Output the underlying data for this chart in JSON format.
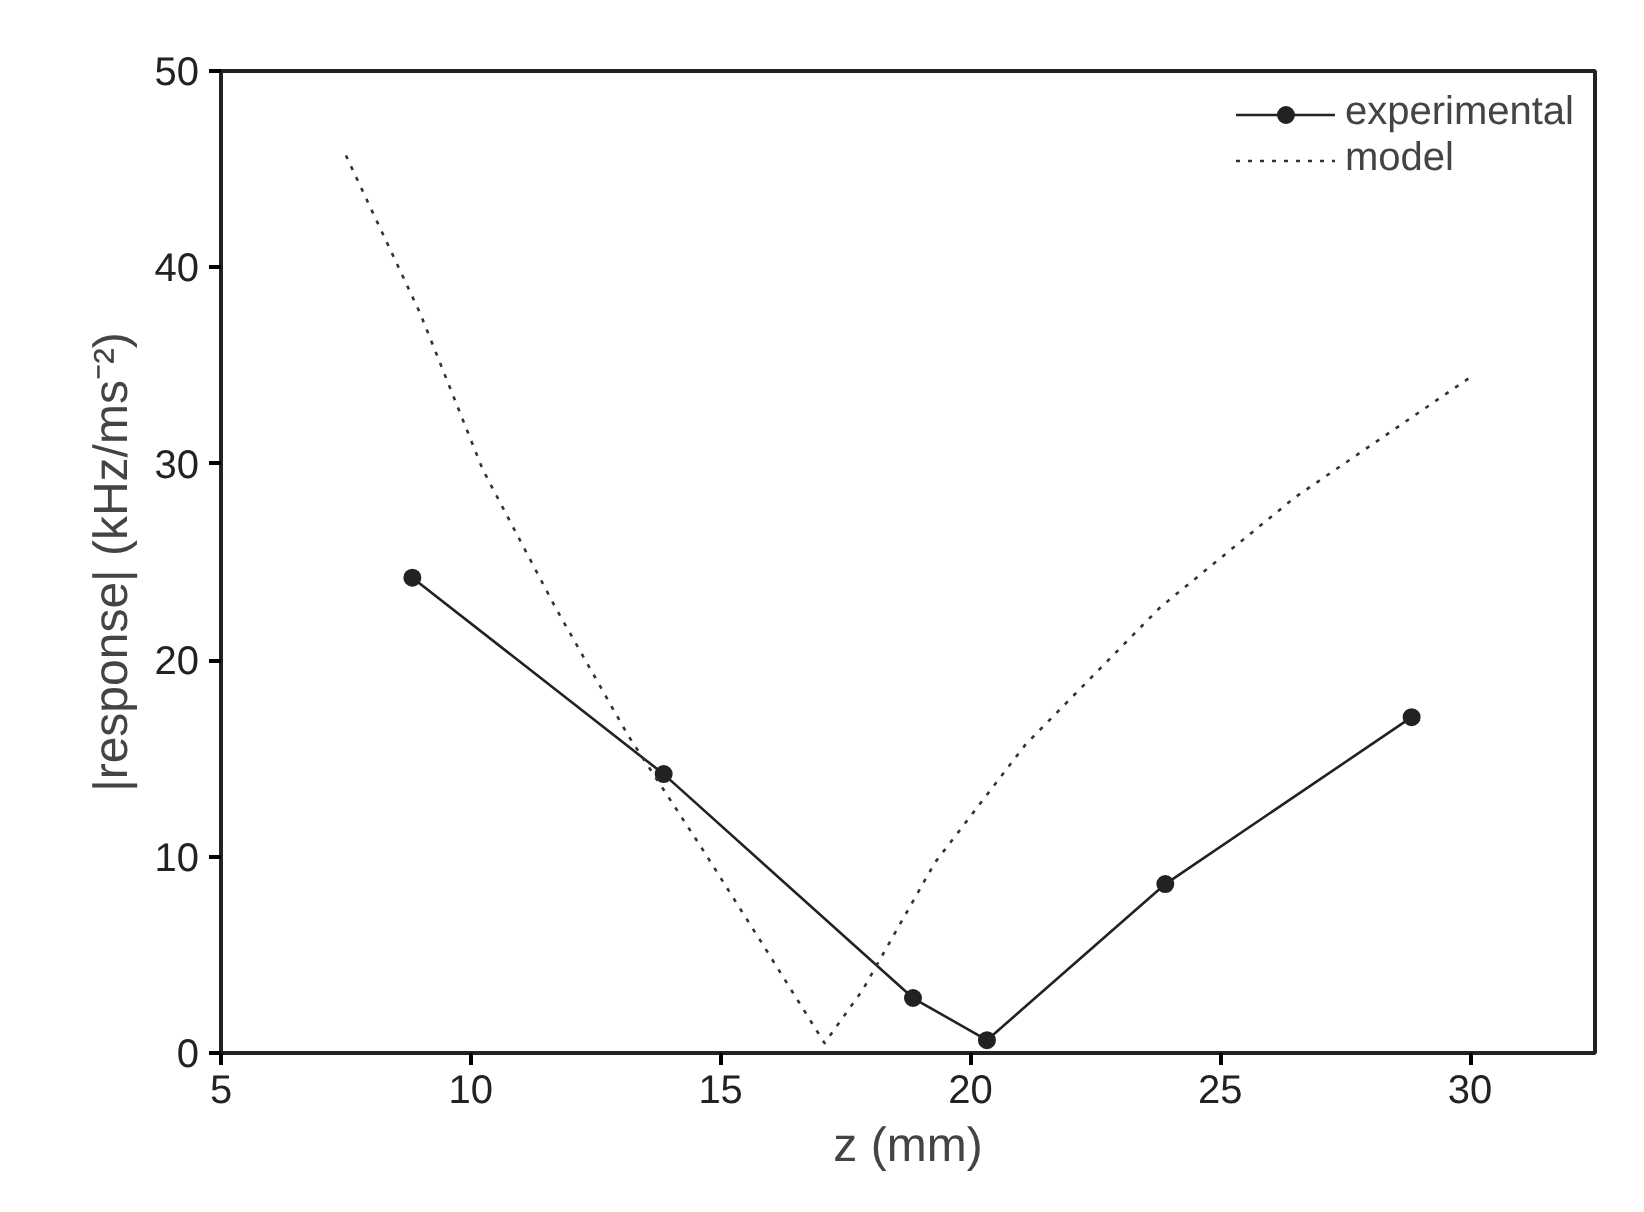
{
  "chart_data": {
    "type": "line",
    "xlabel": "z (mm)",
    "ylabel": "|response| (kHz/ms⁻²)",
    "xlim": [
      5,
      32.5
    ],
    "xticks": [
      5,
      10,
      15,
      20,
      25,
      30
    ],
    "ylim": [
      0,
      50
    ],
    "yticks": [
      0,
      10,
      20,
      30,
      40,
      50
    ],
    "grid": false,
    "legend": "top right",
    "series": [
      {
        "name": "experimental",
        "color": "#222222",
        "marker": "circle",
        "line_style": "solid",
        "x": [
          8.83,
          13.86,
          18.85,
          20.33,
          23.9,
          28.83
        ],
        "values": [
          24.2,
          14.2,
          2.8,
          0.65,
          8.6,
          17.1
        ]
      },
      {
        "name": "model",
        "color": "#333333",
        "marker": "none",
        "line_style": "dotted",
        "x": [
          7.5,
          8.98,
          10.24,
          11.69,
          13.14,
          14.58,
          15.85,
          17.08,
          17.84,
          19.29,
          21.1,
          23.8,
          26.5,
          30.0
        ],
        "values": [
          45.7,
          37.7,
          29.7,
          22.7,
          16.2,
          10.6,
          5.5,
          0.5,
          3.2,
          9.7,
          15.7,
          22.7,
          28.3,
          34.4
        ]
      }
    ]
  }
}
